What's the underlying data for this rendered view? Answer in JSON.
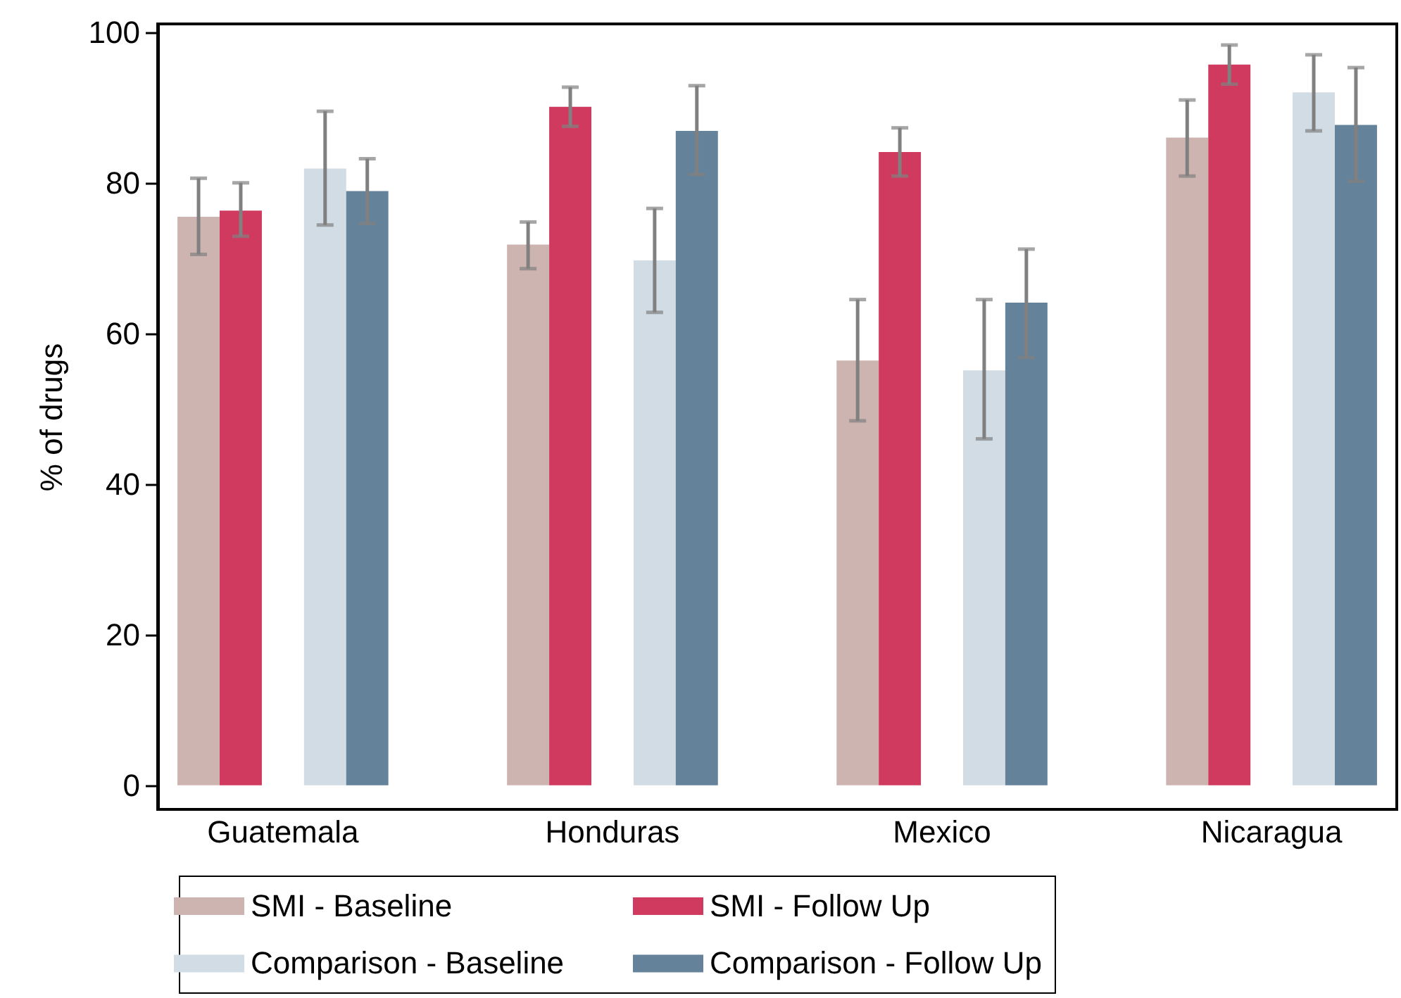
{
  "chart_data": {
    "type": "bar",
    "ylabel": "% of drugs",
    "categories": [
      "Guatemala",
      "Honduras",
      "Mexico",
      "Nicaragua"
    ],
    "series": [
      {
        "name": "SMI - Baseline",
        "color": "#cdb4b0",
        "values": [
          75.5,
          71.8,
          56.4,
          86.0
        ],
        "errors": [
          [
            70.5,
            80.6
          ],
          [
            68.6,
            74.8
          ],
          [
            48.4,
            64.5
          ],
          [
            80.9,
            91.0
          ]
        ]
      },
      {
        "name": "SMI - Follow Up",
        "color": "#cf3a5e",
        "values": [
          76.3,
          90.1,
          84.1,
          95.7
        ],
        "errors": [
          [
            72.9,
            80.0
          ],
          [
            87.5,
            92.7
          ],
          [
            80.9,
            87.3
          ],
          [
            93.1,
            98.3
          ]
        ]
      },
      {
        "name": "Comparison - Baseline",
        "color": "#d2dce5",
        "values": [
          81.9,
          69.7,
          55.1,
          92.0
        ],
        "errors": [
          [
            74.4,
            89.5
          ],
          [
            62.8,
            76.6
          ],
          [
            46.0,
            64.5
          ],
          [
            86.9,
            97.0
          ]
        ]
      },
      {
        "name": "Comparison - Follow Up",
        "color": "#64829a",
        "values": [
          78.9,
          86.9,
          64.1,
          87.7
        ],
        "errors": [
          [
            74.6,
            83.2
          ],
          [
            81.1,
            92.9
          ],
          [
            56.8,
            71.2
          ],
          [
            80.2,
            95.3
          ]
        ]
      }
    ],
    "ylim": [
      -3.2,
      101.1
    ],
    "yticks": [
      0,
      20,
      40,
      60,
      80,
      100
    ],
    "grid": false,
    "legend": "bottom"
  }
}
